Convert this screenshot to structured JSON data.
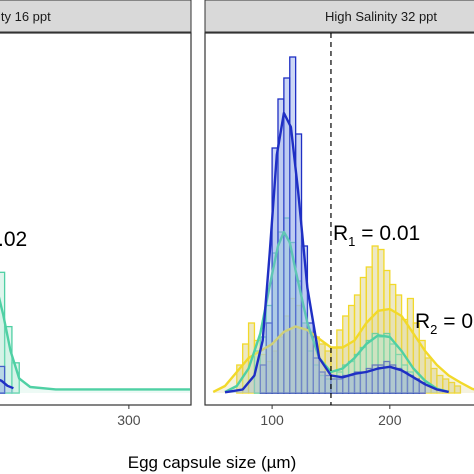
{
  "colors": {
    "blue": "#1f2fc4",
    "blue_fill": "#8fa6e8",
    "teal": "#4fd0a4",
    "teal_fill": "#b8ecd8",
    "yellow": "#f2d92a",
    "yellow_fill": "#d7cc7e",
    "strip_bg": "#d9d9d9",
    "frame": "#333333"
  },
  "chart_data": [
    {
      "type": "histogram",
      "panel": "left",
      "strip_label": "ity 16 ppt",
      "xlabel": "Egg capsule size (µm)",
      "xticks": [
        300
      ],
      "x_range": [
        110,
        385
      ],
      "annotations": [
        {
          "text": ".02"
        }
      ],
      "series": [
        {
          "color": "teal",
          "bins": [
            {
              "x0": 110,
              "x1": 120,
              "h": 0.14
            },
            {
              "x0": 120,
              "x1": 130,
              "h": 0.1
            },
            {
              "x0": 130,
              "x1": 140,
              "h": 0.055
            },
            {
              "x0": 140,
              "x1": 150,
              "h": 0.025
            }
          ],
          "density": [
            [
              110,
              0.1
            ],
            [
              118,
              0.09
            ],
            [
              128,
              0.065
            ],
            [
              138,
              0.035
            ],
            [
              150,
              0.012
            ],
            [
              165,
              0.005
            ],
            [
              200,
              0.003
            ],
            [
              300,
              0.003
            ],
            [
              385,
              0.003
            ]
          ]
        },
        {
          "color": "blue",
          "bins": [
            {
              "x0": 110,
              "x1": 120,
              "h": 0.03
            },
            {
              "x0": 120,
              "x1": 130,
              "h": 0.022
            }
          ],
          "density": [
            [
              110,
              0.008
            ],
            [
              118,
              0.012
            ],
            [
              126,
              0.01
            ],
            [
              134,
              0.006
            ],
            [
              142,
              0.004
            ]
          ]
        }
      ]
    },
    {
      "type": "histogram",
      "panel": "right",
      "strip_label": "High Salinity 32 ppt",
      "xticks": [
        100,
        200
      ],
      "x_range": [
        43,
        280
      ],
      "vline_x": 150,
      "annotations": [
        {
          "main": "R",
          "sub": "1",
          "text": " = 0.01"
        },
        {
          "main": "R",
          "sub": "2",
          "text": " = 0"
        }
      ],
      "series": [
        {
          "color": "yellow",
          "bins": [
            {
              "x0": 70,
              "x1": 75,
              "h": 0.08
            },
            {
              "x0": 75,
              "x1": 80,
              "h": 0.14
            },
            {
              "x0": 80,
              "x1": 85,
              "h": 0.2
            },
            {
              "x0": 85,
              "x1": 90,
              "h": 0.15
            },
            {
              "x0": 90,
              "x1": 95,
              "h": 0.11
            },
            {
              "x0": 95,
              "x1": 100,
              "h": 0.09
            },
            {
              "x0": 100,
              "x1": 105,
              "h": 0.12
            },
            {
              "x0": 105,
              "x1": 110,
              "h": 0.16
            },
            {
              "x0": 110,
              "x1": 115,
              "h": 0.22
            },
            {
              "x0": 115,
              "x1": 120,
              "h": 0.27
            },
            {
              "x0": 120,
              "x1": 125,
              "h": 0.25
            },
            {
              "x0": 125,
              "x1": 130,
              "h": 0.2
            },
            {
              "x0": 130,
              "x1": 135,
              "h": 0.17
            },
            {
              "x0": 135,
              "x1": 140,
              "h": 0.16
            },
            {
              "x0": 140,
              "x1": 145,
              "h": 0.14
            },
            {
              "x0": 145,
              "x1": 150,
              "h": 0.12
            },
            {
              "x0": 150,
              "x1": 155,
              "h": 0.13
            },
            {
              "x0": 155,
              "x1": 160,
              "h": 0.18
            },
            {
              "x0": 160,
              "x1": 165,
              "h": 0.22
            },
            {
              "x0": 165,
              "x1": 170,
              "h": 0.25
            },
            {
              "x0": 170,
              "x1": 175,
              "h": 0.28
            },
            {
              "x0": 175,
              "x1": 180,
              "h": 0.33
            },
            {
              "x0": 180,
              "x1": 185,
              "h": 0.36
            },
            {
              "x0": 185,
              "x1": 190,
              "h": 0.42
            },
            {
              "x0": 190,
              "x1": 195,
              "h": 0.41
            },
            {
              "x0": 195,
              "x1": 200,
              "h": 0.35
            },
            {
              "x0": 200,
              "x1": 205,
              "h": 0.31
            },
            {
              "x0": 205,
              "x1": 210,
              "h": 0.28
            },
            {
              "x0": 210,
              "x1": 215,
              "h": 0.21
            },
            {
              "x0": 215,
              "x1": 220,
              "h": 0.27
            },
            {
              "x0": 220,
              "x1": 225,
              "h": 0.2
            },
            {
              "x0": 225,
              "x1": 230,
              "h": 0.15
            },
            {
              "x0": 230,
              "x1": 235,
              "h": 0.1
            },
            {
              "x0": 235,
              "x1": 240,
              "h": 0.07
            },
            {
              "x0": 240,
              "x1": 245,
              "h": 0.05
            },
            {
              "x0": 245,
              "x1": 250,
              "h": 0.04
            },
            {
              "x0": 250,
              "x1": 255,
              "h": 0.03
            },
            {
              "x0": 255,
              "x1": 260,
              "h": 0.02
            }
          ],
          "density": [
            [
              50,
              0.003
            ],
            [
              60,
              0.02
            ],
            [
              70,
              0.06
            ],
            [
              80,
              0.1
            ],
            [
              90,
              0.12
            ],
            [
              100,
              0.14
            ],
            [
              110,
              0.175
            ],
            [
              120,
              0.19
            ],
            [
              130,
              0.18
            ],
            [
              140,
              0.155
            ],
            [
              150,
              0.13
            ],
            [
              160,
              0.13
            ],
            [
              170,
              0.15
            ],
            [
              180,
              0.2
            ],
            [
              190,
              0.235
            ],
            [
              200,
              0.24
            ],
            [
              210,
              0.22
            ],
            [
              220,
              0.17
            ],
            [
              230,
              0.12
            ],
            [
              240,
              0.08
            ],
            [
              250,
              0.05
            ],
            [
              260,
              0.03
            ],
            [
              270,
              0.012
            ],
            [
              280,
              0.004
            ]
          ]
        },
        {
          "color": "teal",
          "bins": [
            {
              "x0": 85,
              "x1": 90,
              "h": 0.12
            },
            {
              "x0": 90,
              "x1": 95,
              "h": 0.16
            },
            {
              "x0": 95,
              "x1": 100,
              "h": 0.25
            },
            {
              "x0": 100,
              "x1": 105,
              "h": 0.4
            },
            {
              "x0": 105,
              "x1": 110,
              "h": 0.46
            },
            {
              "x0": 110,
              "x1": 115,
              "h": 0.5
            },
            {
              "x0": 115,
              "x1": 120,
              "h": 0.43
            },
            {
              "x0": 120,
              "x1": 125,
              "h": 0.32
            },
            {
              "x0": 125,
              "x1": 130,
              "h": 0.2
            },
            {
              "x0": 130,
              "x1": 135,
              "h": 0.12
            },
            {
              "x0": 135,
              "x1": 140,
              "h": 0.08
            },
            {
              "x0": 140,
              "x1": 145,
              "h": 0.05
            },
            {
              "x0": 145,
              "x1": 150,
              "h": 0.04
            },
            {
              "x0": 150,
              "x1": 155,
              "h": 0.05
            },
            {
              "x0": 155,
              "x1": 160,
              "h": 0.06
            },
            {
              "x0": 160,
              "x1": 165,
              "h": 0.08
            },
            {
              "x0": 165,
              "x1": 170,
              "h": 0.09
            },
            {
              "x0": 170,
              "x1": 175,
              "h": 0.11
            },
            {
              "x0": 175,
              "x1": 180,
              "h": 0.13
            },
            {
              "x0": 180,
              "x1": 185,
              "h": 0.15
            },
            {
              "x0": 185,
              "x1": 190,
              "h": 0.17
            },
            {
              "x0": 190,
              "x1": 195,
              "h": 0.16
            },
            {
              "x0": 195,
              "x1": 200,
              "h": 0.17
            },
            {
              "x0": 200,
              "x1": 205,
              "h": 0.14
            },
            {
              "x0": 205,
              "x1": 210,
              "h": 0.11
            },
            {
              "x0": 210,
              "x1": 215,
              "h": 0.08
            },
            {
              "x0": 215,
              "x1": 220,
              "h": 0.06
            },
            {
              "x0": 220,
              "x1": 225,
              "h": 0.04
            }
          ],
          "density": [
            [
              60,
              0.003
            ],
            [
              70,
              0.02
            ],
            [
              80,
              0.07
            ],
            [
              90,
              0.17
            ],
            [
              100,
              0.34
            ],
            [
              105,
              0.42
            ],
            [
              110,
              0.46
            ],
            [
              115,
              0.43
            ],
            [
              120,
              0.35
            ],
            [
              130,
              0.2
            ],
            [
              140,
              0.1
            ],
            [
              150,
              0.06
            ],
            [
              160,
              0.07
            ],
            [
              170,
              0.1
            ],
            [
              180,
              0.14
            ],
            [
              190,
              0.165
            ],
            [
              200,
              0.16
            ],
            [
              210,
              0.12
            ],
            [
              220,
              0.07
            ],
            [
              230,
              0.035
            ],
            [
              240,
              0.012
            ],
            [
              250,
              0.003
            ]
          ]
        },
        {
          "color": "blue",
          "bins": [
            {
              "x0": 90,
              "x1": 95,
              "h": 0.08
            },
            {
              "x0": 95,
              "x1": 100,
              "h": 0.2
            },
            {
              "x0": 100,
              "x1": 105,
              "h": 0.7
            },
            {
              "x0": 105,
              "x1": 110,
              "h": 0.84
            },
            {
              "x0": 110,
              "x1": 115,
              "h": 0.9
            },
            {
              "x0": 115,
              "x1": 120,
              "h": 0.96
            },
            {
              "x0": 120,
              "x1": 125,
              "h": 0.74
            },
            {
              "x0": 125,
              "x1": 130,
              "h": 0.42
            },
            {
              "x0": 130,
              "x1": 135,
              "h": 0.2
            },
            {
              "x0": 135,
              "x1": 140,
              "h": 0.1
            },
            {
              "x0": 140,
              "x1": 145,
              "h": 0.06
            },
            {
              "x0": 145,
              "x1": 150,
              "h": 0.05
            },
            {
              "x0": 150,
              "x1": 155,
              "h": 0.04
            },
            {
              "x0": 155,
              "x1": 160,
              "h": 0.04
            },
            {
              "x0": 160,
              "x1": 165,
              "h": 0.05
            },
            {
              "x0": 165,
              "x1": 170,
              "h": 0.05
            },
            {
              "x0": 170,
              "x1": 175,
              "h": 0.06
            },
            {
              "x0": 175,
              "x1": 180,
              "h": 0.06
            },
            {
              "x0": 180,
              "x1": 185,
              "h": 0.07
            },
            {
              "x0": 185,
              "x1": 190,
              "h": 0.08
            },
            {
              "x0": 190,
              "x1": 195,
              "h": 0.08
            },
            {
              "x0": 195,
              "x1": 200,
              "h": 0.09
            },
            {
              "x0": 200,
              "x1": 205,
              "h": 0.08
            },
            {
              "x0": 205,
              "x1": 210,
              "h": 0.07
            },
            {
              "x0": 210,
              "x1": 215,
              "h": 0.06
            },
            {
              "x0": 215,
              "x1": 220,
              "h": 0.05
            },
            {
              "x0": 220,
              "x1": 225,
              "h": 0.04
            },
            {
              "x0": 225,
              "x1": 230,
              "h": 0.03
            }
          ],
          "density": [
            [
              60,
              0.002
            ],
            [
              75,
              0.01
            ],
            [
              85,
              0.05
            ],
            [
              92,
              0.15
            ],
            [
              98,
              0.4
            ],
            [
              104,
              0.68
            ],
            [
              110,
              0.8
            ],
            [
              116,
              0.76
            ],
            [
              122,
              0.58
            ],
            [
              130,
              0.3
            ],
            [
              140,
              0.1
            ],
            [
              150,
              0.05
            ],
            [
              160,
              0.045
            ],
            [
              170,
              0.055
            ],
            [
              180,
              0.06
            ],
            [
              190,
              0.07
            ],
            [
              200,
              0.075
            ],
            [
              210,
              0.065
            ],
            [
              220,
              0.045
            ],
            [
              230,
              0.025
            ],
            [
              240,
              0.01
            ],
            [
              250,
              0.003
            ]
          ]
        }
      ]
    }
  ]
}
